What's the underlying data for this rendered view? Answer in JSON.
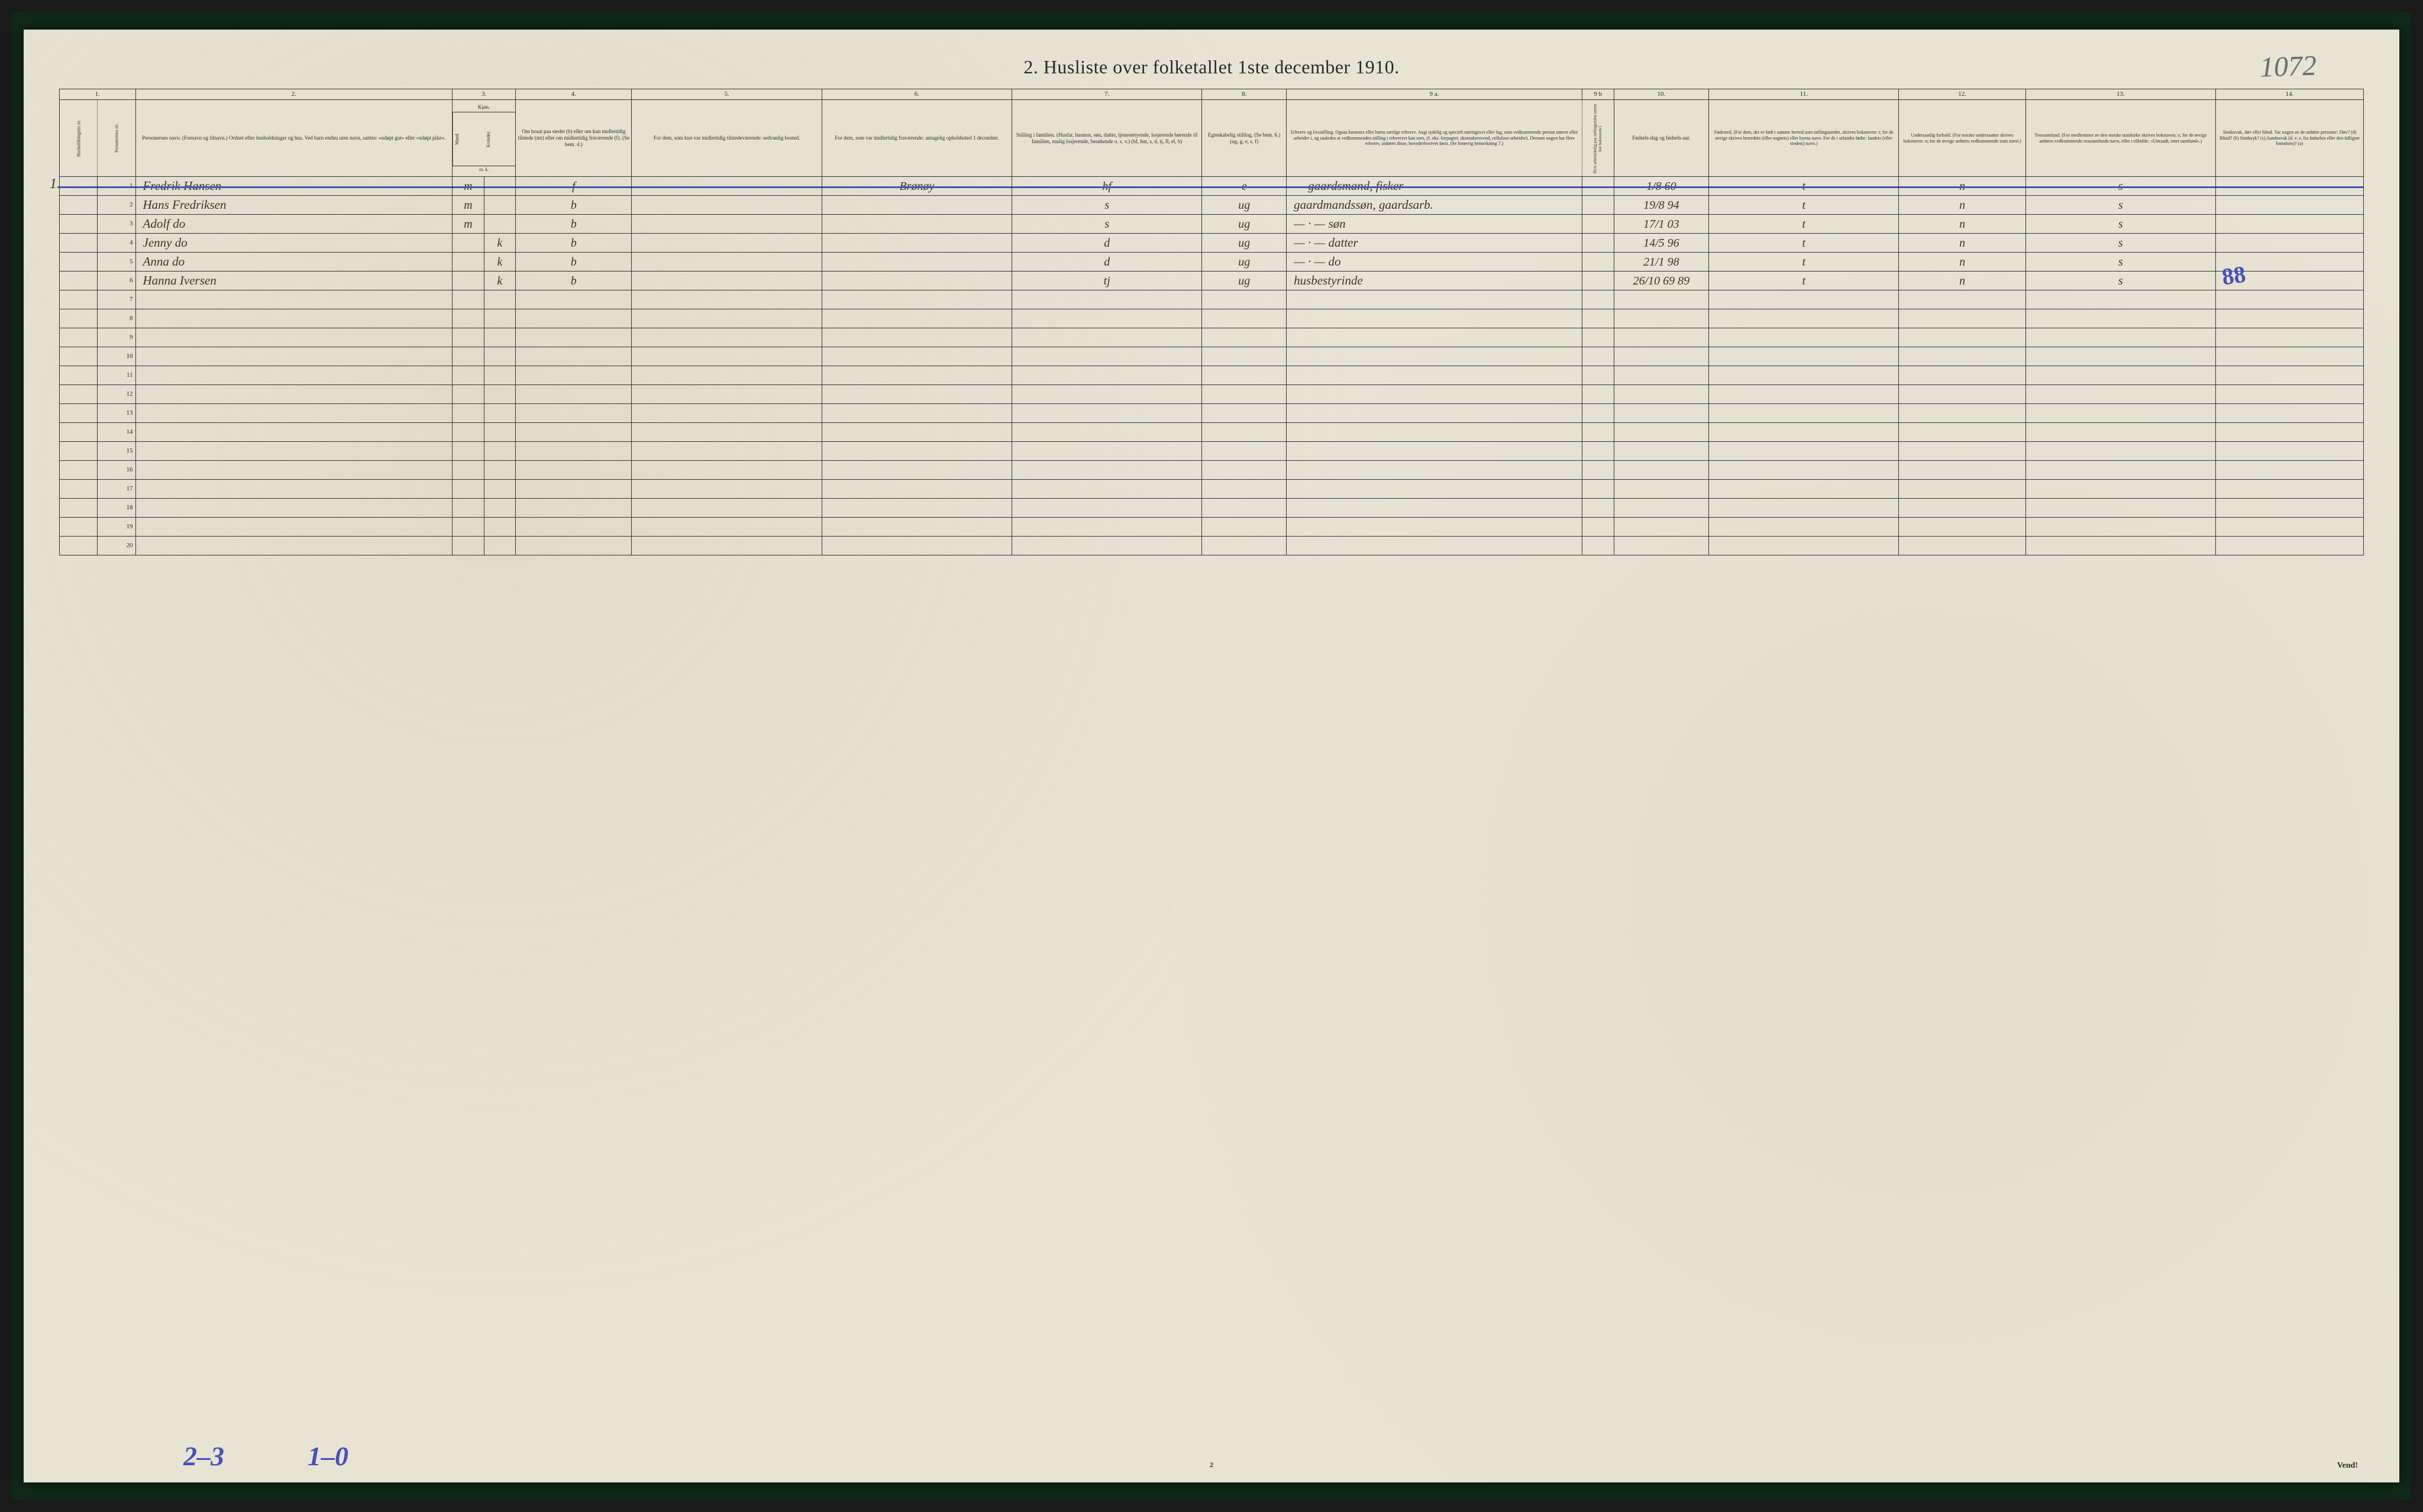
{
  "document": {
    "title": "2.  Husliste over folketallet 1ste december 1910.",
    "handwritten_top_right": "1072",
    "page_number": "2",
    "footer_right": "Vend!",
    "left_margin_marker": "1.",
    "bottom_annotations": {
      "left": "2–3",
      "mid": "1–0"
    },
    "blue_scribble": "88"
  },
  "columns": {
    "numbers": [
      "1.",
      "2.",
      "3.",
      "4.",
      "5.",
      "6.",
      "7.",
      "8.",
      "9 a.",
      "9 b",
      "10.",
      "11.",
      "12.",
      "13.",
      "14."
    ],
    "headers": {
      "c1": "Husholdningens nr.",
      "c2": "Personernes nr.",
      "c3": "Personernes navn.\n(Fornavn og tilnavn.)\nOrdnet efter husholdninger og hus.\nVed barn endnu uten navn, sættes: «udøpt gut» eller «udøpt pike».",
      "c3a": "Kjøn.",
      "c3a1": "Mand.",
      "c3a2": "Kvinder.",
      "c3a3": "m.  k.",
      "c4": "Om bosat paa stedet (b) eller om kun midlertidig tilstede (mt) eller om midlertidig fraværende (f).\n(Se bem. 4.)",
      "c5": "For dem, som kun var midlertidig tilstedeværende:\nsedvanlig bosted.",
      "c6": "For dem, som var midlertidig fraværende:\nantagelig opholdssted 1 december.",
      "c7": "Stilling i familien.\n(Husfar, husmor, søn, datter, tjenestetyende, losjerende hørende til familien, enslig losjerende, besøkende o. s. v.)\n(hf, hm, s, d, tj, fl, el, b)",
      "c8": "Egteskabelig stilling.\n(Se bem. 6.)\n(ug, g, e, s, f)",
      "c9a": "Erhverv og livsstilling.\nOgsaa husmors eller barns særlige erhverv.\nAngi tydelig og specielt næringsvei eller fag, som vedkommende person utøver eller arbeider i, og saaledes at vedkommendes stilling i erhvervet kan sees, (f. eks. forpagter, skomakersvend, cellulose-arbeider). Dersom nogen har flere erhverv, anføres disse, hovederhvervet først.\n(Se forøvrig bemerkning 7.)",
      "c9b": "Hvis arbeidsledig paa tællingstiden sættes her bokstaven l.",
      "c10": "Fødsels-dag og fødsels-aar.",
      "c11": "Fødested.\n(For dem, der er født i samme herred som tællingsstedet, skrives bokstaven: t; for de øvrige skrives herredets (eller sognets) eller byens navn.\nFor de i utlandet fødte: landets (eller stedets) navn.)",
      "c12": "Undersaatlig forhold.\n(For norske undersaatter skrives bokstaven: n; for de øvrige anføres vedkommende stats navn.)",
      "c13": "Trossamfund.\n(For medlemmer av den norske statskirke skrives bokstaven: s; for de øvrige anføres vedkommende trossamfunds navn, eller i tilfælde: «Uttraadt, intet samfund».)",
      "c14": "Sindssvak, døv eller blind.\nVar nogen av de anførte personer:\nDøv?     (d)\nBlind?    (b)\nSindssyk? (s)\nAandssvak (d. v. s. fra fødselen eller den tidligste barndom)? (a)"
    }
  },
  "rows": [
    {
      "num": "1",
      "name": "Fredrik    Hansen",
      "mk": "m",
      "col4": "f",
      "col5": "",
      "col6": "Brønøy",
      "col7": "hf",
      "col8": "e",
      "col9a": "— gaardsmand, fisker",
      "col10": "1/8 60",
      "col11": "t",
      "col12": "n",
      "col13": "s",
      "col14": "",
      "blue_strike": true
    },
    {
      "num": "2",
      "name": "Hans       Fredriksen",
      "mk": "m",
      "col4": "b",
      "col5": "",
      "col6": "",
      "col7": "s",
      "col8": "ug",
      "col9a": "gaardmandssøn, gaardsarb.",
      "col10": "19/8 94",
      "col11": "t",
      "col12": "n",
      "col13": "s",
      "col14": ""
    },
    {
      "num": "3",
      "name": "Adolf        do",
      "mk": "m",
      "col4": "b",
      "col5": "",
      "col6": "",
      "col7": "s",
      "col8": "ug",
      "col9a": "— · —    søn",
      "col10": "17/1 03",
      "col11": "t",
      "col12": "n",
      "col13": "s",
      "col14": ""
    },
    {
      "num": "4",
      "name": "Jenny        do",
      "mk": "k",
      "col4": "b",
      "col5": "",
      "col6": "",
      "col7": "d",
      "col8": "ug",
      "col9a": "— · —    datter",
      "col10": "14/5 96",
      "col11": "t",
      "col12": "n",
      "col13": "s",
      "col14": ""
    },
    {
      "num": "5",
      "name": "Anna        do",
      "mk": "k",
      "col4": "b",
      "col5": "",
      "col6": "",
      "col7": "d",
      "col8": "ug",
      "col9a": "— · —    do",
      "col10": "21/1 98",
      "col11": "t",
      "col12": "n",
      "col13": "s",
      "col14": ""
    },
    {
      "num": "6",
      "name": "Hanna     Iversen",
      "mk": "k",
      "col4": "b",
      "col5": "",
      "col6": "",
      "col7": "tj",
      "col8": "ug",
      "col9a": "husbestyrinde",
      "col10": "26/10 69 89",
      "col11": "t",
      "col12": "n",
      "col13": "s",
      "col14": ""
    }
  ],
  "empty_row_count": 14,
  "styling": {
    "page_bg": "#e8e4d4",
    "outer_bg": "#0f2818",
    "ink": "#2a2a2a",
    "handwriting": "#3a3528",
    "blue": "#4a4fb8",
    "border": "#333",
    "title_fontsize": 32,
    "header_fontsize": 9,
    "data_fontsize": 20
  }
}
